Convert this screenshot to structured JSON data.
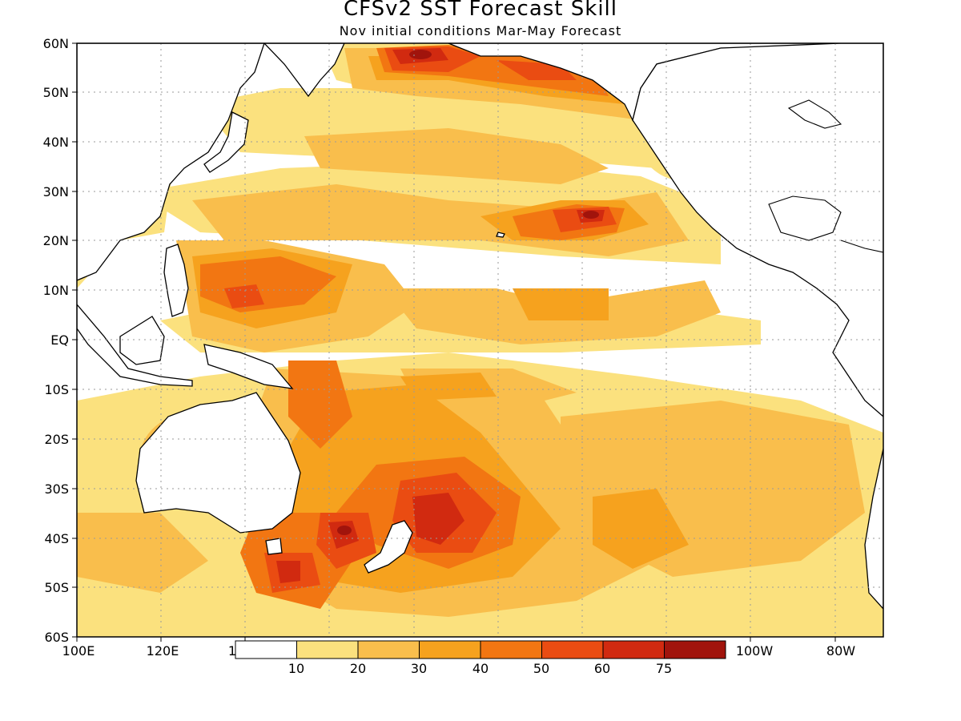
{
  "title": "CFSv2 SST Forecast Skill",
  "subtitle": "Nov initial conditions  Mar-May Forecast",
  "map": {
    "region": "Pacific Ocean",
    "lon_range": [
      "100E",
      "85W"
    ],
    "lat_range": [
      "60S",
      "60N"
    ],
    "grid": "dotted",
    "land_fill": "#ffffff",
    "coastline_color": "#000000"
  },
  "axes": {
    "y_ticks": [
      "60N",
      "50N",
      "40N",
      "30N",
      "20N",
      "10N",
      "EQ",
      "10S",
      "20S",
      "30S",
      "40S",
      "50S",
      "60S"
    ],
    "x_ticks": [
      "100E",
      "120E",
      "1",
      "100W",
      "80W"
    ]
  },
  "colorbar": {
    "levels": [
      "10",
      "20",
      "30",
      "40",
      "50",
      "60",
      "75"
    ],
    "colors": [
      "#ffffff",
      "#fbe17e",
      "#f9be4c",
      "#f6a21e",
      "#f27612",
      "#ea4c12",
      "#d12a10",
      "#a1140c"
    ]
  }
}
